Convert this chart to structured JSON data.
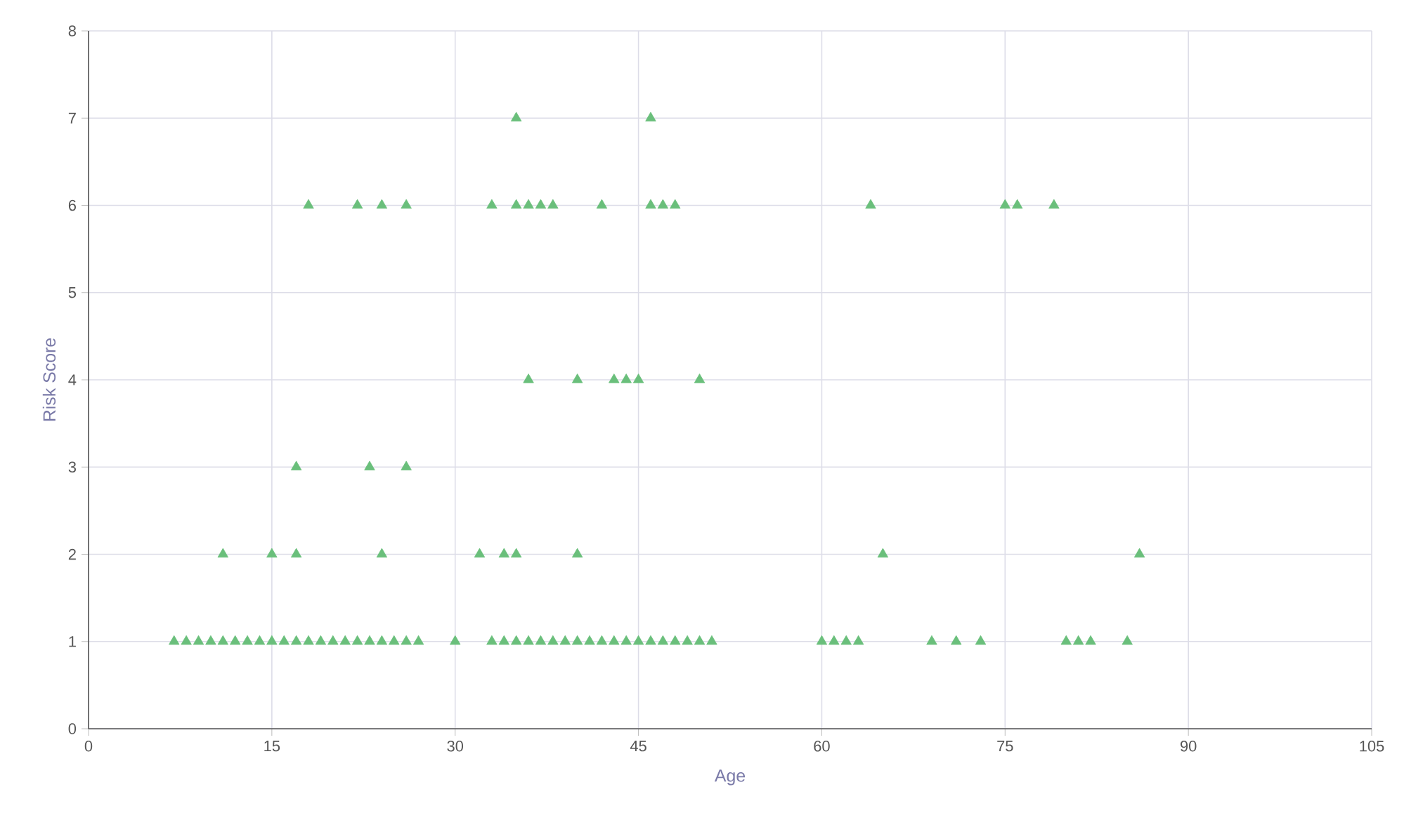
{
  "chart_data": {
    "type": "scatter",
    "xlabel": "Age",
    "ylabel": "Risk Score",
    "xlim": [
      0,
      105
    ],
    "xticks": [
      0,
      15,
      30,
      45,
      60,
      75,
      90,
      105
    ],
    "ylim": [
      0,
      8
    ],
    "yticks": [
      0,
      1,
      2,
      3,
      4,
      5,
      6,
      7,
      8
    ],
    "grid": true,
    "marker": "triangle",
    "series": [
      {
        "color": "#6abf7b",
        "x": [
          7,
          8,
          9,
          10,
          11,
          12,
          13,
          14,
          15,
          16,
          17,
          18,
          19,
          20,
          21,
          22,
          23,
          24,
          25,
          26,
          27,
          30,
          33,
          34,
          35,
          36,
          37,
          38,
          39,
          40,
          41,
          42,
          43,
          44,
          45,
          46,
          47,
          48,
          49,
          50,
          51,
          60,
          61,
          62,
          63,
          69,
          71,
          73,
          80,
          81,
          82,
          85,
          11,
          15,
          17,
          24,
          32,
          34,
          35,
          40,
          65,
          86,
          17,
          23,
          26,
          36,
          40,
          43,
          44,
          45,
          50,
          18,
          22,
          24,
          26,
          33,
          35,
          36,
          37,
          38,
          42,
          46,
          47,
          48,
          64,
          75,
          76,
          79,
          35,
          46
        ],
        "values": [
          1,
          1,
          1,
          1,
          1,
          1,
          1,
          1,
          1,
          1,
          1,
          1,
          1,
          1,
          1,
          1,
          1,
          1,
          1,
          1,
          1,
          1,
          1,
          1,
          1,
          1,
          1,
          1,
          1,
          1,
          1,
          1,
          1,
          1,
          1,
          1,
          1,
          1,
          1,
          1,
          1,
          1,
          1,
          1,
          1,
          1,
          1,
          1,
          1,
          1,
          1,
          1,
          2,
          2,
          2,
          2,
          2,
          2,
          2,
          2,
          2,
          2,
          3,
          3,
          3,
          4,
          4,
          4,
          4,
          4,
          4,
          6,
          6,
          6,
          6,
          6,
          6,
          6,
          6,
          6,
          6,
          6,
          6,
          6,
          6,
          6,
          6,
          6,
          7,
          7
        ]
      }
    ]
  }
}
